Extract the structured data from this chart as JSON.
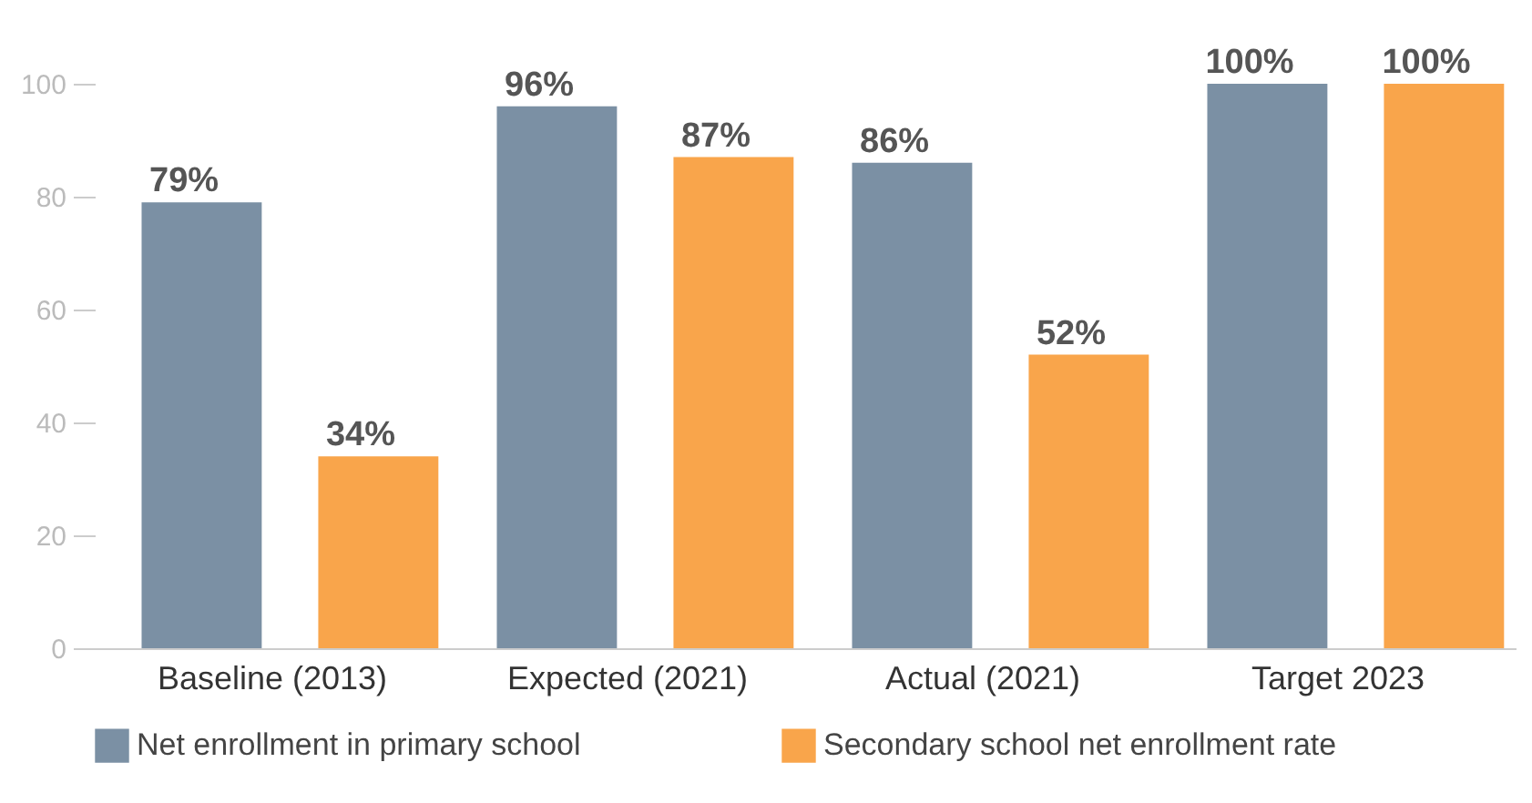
{
  "chart_data": {
    "type": "bar",
    "categories": [
      "Baseline (2013)",
      "Expected (2021)",
      "Actual (2021)",
      "Target 2023"
    ],
    "series": [
      {
        "name": "Net enrollment in primary school",
        "color": "#7b90a4",
        "values": [
          79,
          96,
          86,
          100
        ],
        "value_labels": [
          "79%",
          "96%",
          "86%",
          "100%"
        ]
      },
      {
        "name": "Secondary school net enrollment rate",
        "color": "#f9a54b",
        "values": [
          34,
          87,
          52,
          100
        ],
        "value_labels": [
          "34%",
          "87%",
          "52%",
          "100%"
        ]
      }
    ],
    "ylim": [
      0,
      100
    ],
    "yticks": [
      0,
      20,
      40,
      60,
      80,
      100
    ],
    "grid": false,
    "legend": "bottom"
  }
}
